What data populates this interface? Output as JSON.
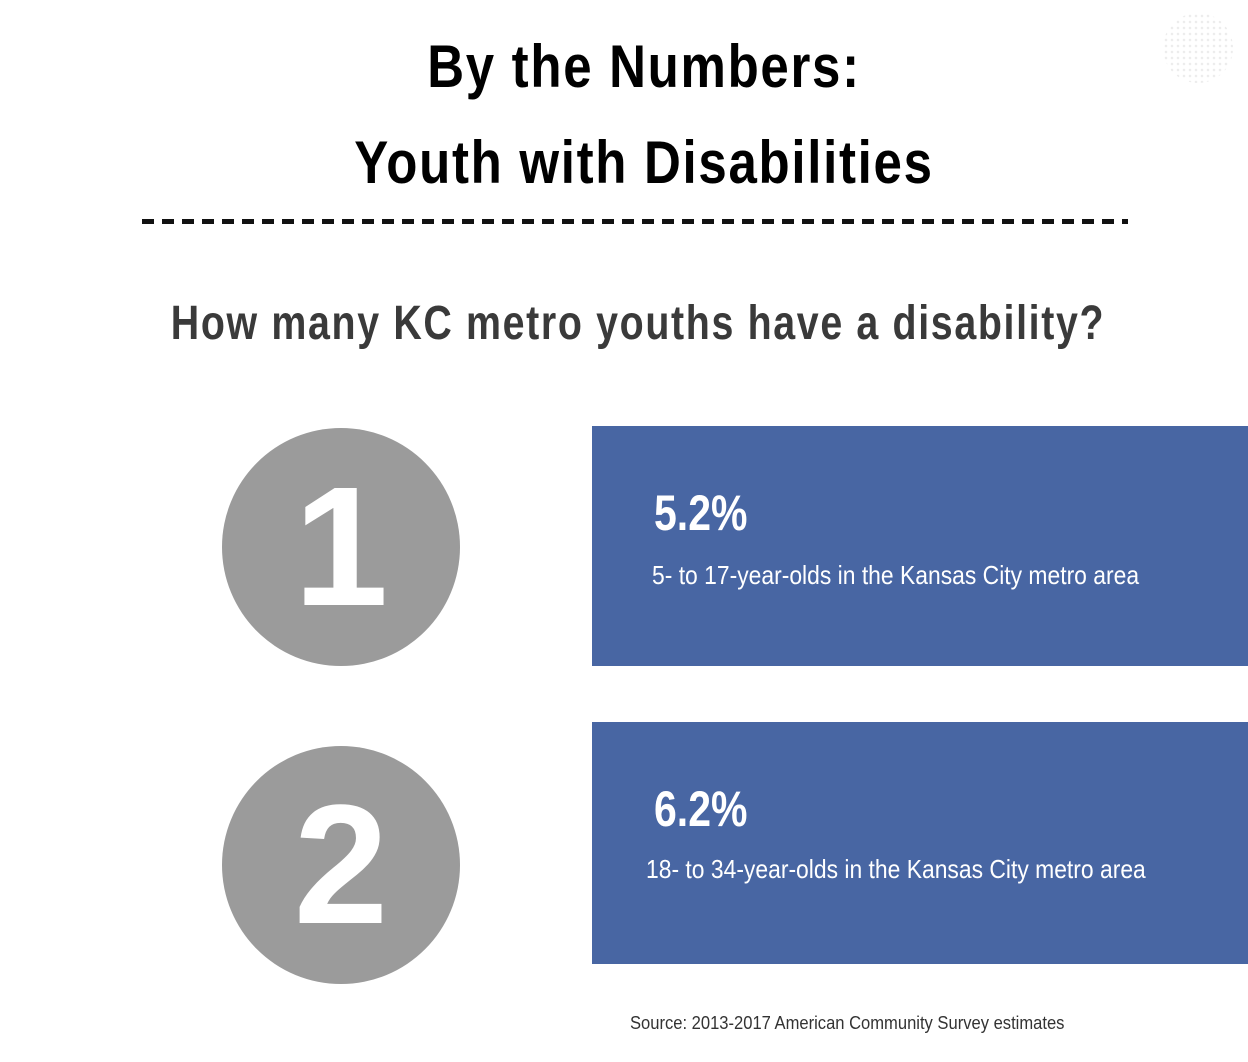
{
  "header": {
    "title_line1": "By the Numbers:",
    "title_line2": "Youth with Disabilities"
  },
  "question": "How many KC metro youths have a disability?",
  "items": [
    {
      "number": "1",
      "percent": "5.2%",
      "description": "5- to 17-year-olds in the Kansas City metro area"
    },
    {
      "number": "2",
      "percent": "6.2%",
      "description": "18- to 34-year-olds in the Kansas City metro area"
    }
  ],
  "source": "Source: 2013-2017 American Community Survey estimates",
  "colors": {
    "box": "#4866a3",
    "circle": "#9b9b9b"
  }
}
